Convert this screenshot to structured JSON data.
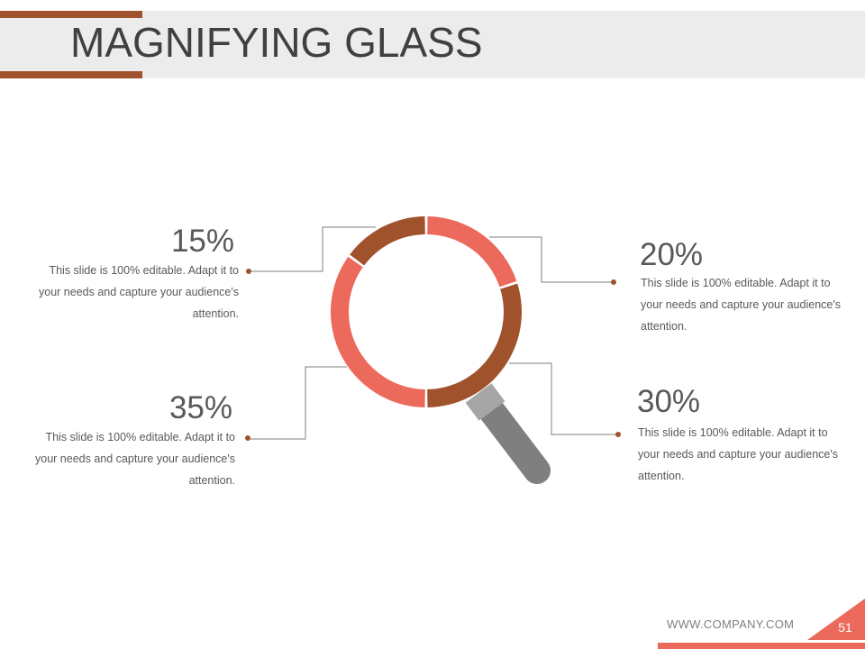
{
  "slide": {
    "title": "MAGNIFYING GLASS",
    "footer_url": "WWW.COMPANY.COM",
    "page_number": "51"
  },
  "colors": {
    "accent_dark": "#A0522D",
    "accent_light": "#EC6A5C",
    "handle_dark": "#7F7F7F",
    "handle_light": "#A6A6A6",
    "connector_line": "#7F7F7F",
    "title_band": "#ECECEC"
  },
  "segments": [
    {
      "value": 20,
      "label": "20%",
      "description": "This slide is 100% editable. Adapt it to your needs and capture your audience's attention.",
      "color": "#EC6A5C"
    },
    {
      "value": 30,
      "label": "30%",
      "description": "This slide is 100% editable. Adapt it to your needs and capture your audience's attention.",
      "color": "#A0522D"
    },
    {
      "value": 35,
      "label": "35%",
      "description": "This slide is 100% editable. Adapt it to your needs and capture your audience's attention.",
      "color": "#EC6A5C"
    },
    {
      "value": 15,
      "label": "15%",
      "description": "This slide is 100% editable. Adapt it to your needs and capture your audience's attention.",
      "color": "#A0522D"
    }
  ]
}
